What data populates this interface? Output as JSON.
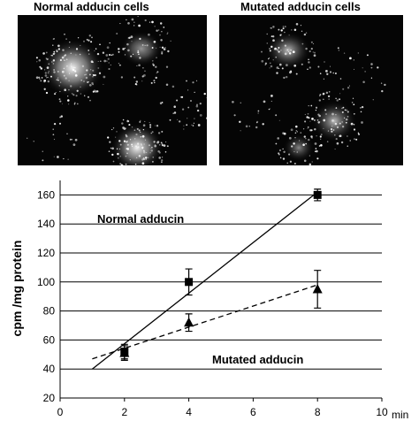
{
  "panels": {
    "left_title": "Normal adducin cells",
    "right_title": "Mutated adducin cells"
  },
  "chart_data": {
    "type": "scatter",
    "ylabel": "cpm /mg protein",
    "x_unit_label": "min",
    "xlim": [
      0,
      10
    ],
    "ylim": [
      20,
      170
    ],
    "xticks": [
      0,
      2,
      4,
      6,
      8,
      10
    ],
    "yticks": [
      20,
      40,
      60,
      80,
      100,
      120,
      140,
      160
    ],
    "grid": "horizontal",
    "series": [
      {
        "name": "Normal adducin",
        "marker": "square",
        "fit_line": "solid",
        "x": [
          2,
          4,
          8
        ],
        "y": [
          52,
          100,
          160
        ],
        "err": [
          5,
          9,
          4
        ],
        "fit": [
          [
            1,
            40
          ],
          [
            8,
            162
          ]
        ]
      },
      {
        "name": "Mutated adducin",
        "marker": "triangle",
        "fit_line": "dashed",
        "x": [
          2,
          4,
          8
        ],
        "y": [
          51,
          72,
          95
        ],
        "err": [
          5,
          6,
          13
        ],
        "fit": [
          [
            1,
            47
          ],
          [
            8,
            98
          ]
        ]
      }
    ]
  }
}
